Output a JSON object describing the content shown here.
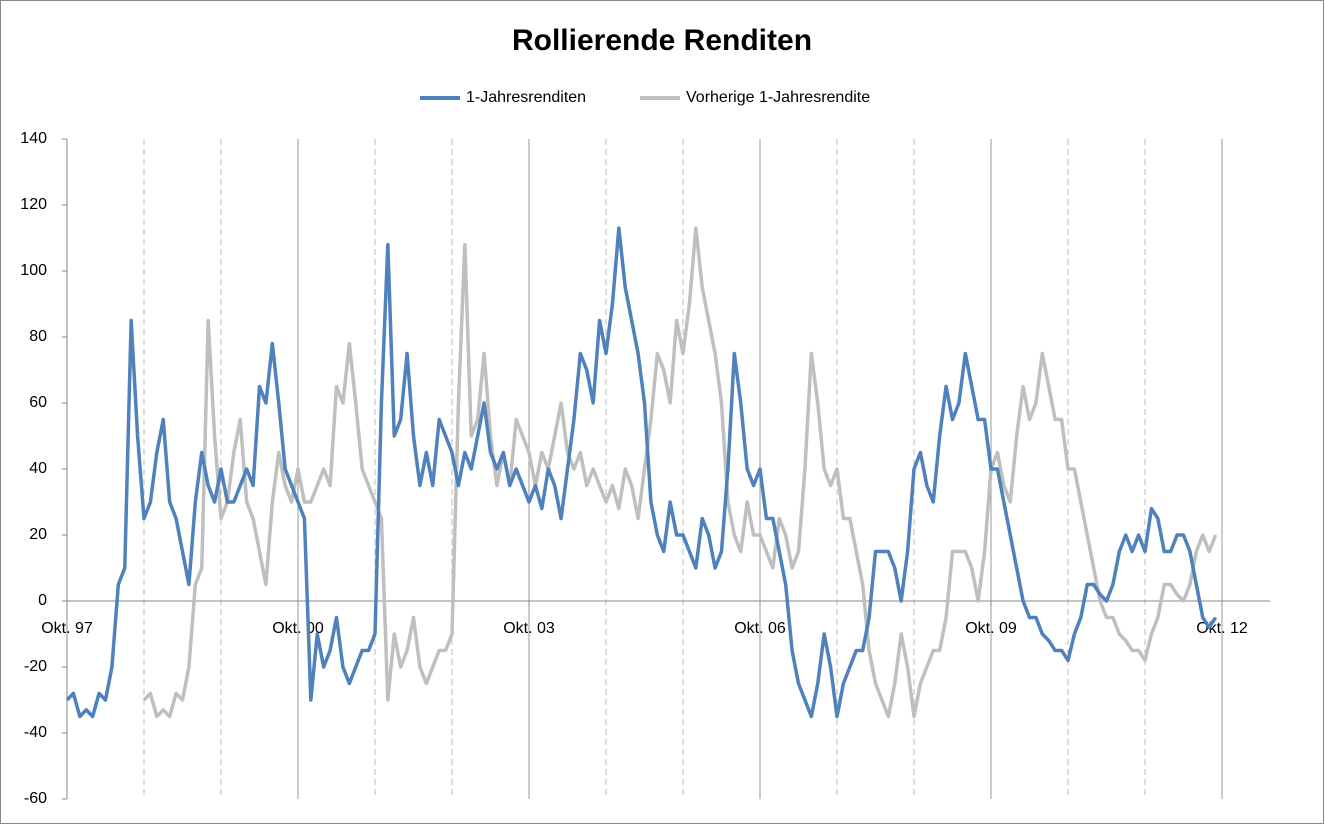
{
  "chart_data": {
    "type": "line",
    "title": "Rollierende Renditen",
    "categories": [
      "Okt. 97",
      null,
      null,
      null,
      null,
      null,
      null,
      null,
      null,
      null,
      null,
      null,
      null,
      null,
      null,
      null,
      null,
      null,
      null,
      null,
      null,
      null,
      null,
      null,
      null,
      null,
      null,
      null,
      null,
      null,
      null,
      null,
      null,
      null,
      null,
      null,
      "Okt. 00",
      null,
      null,
      null,
      null,
      null,
      null,
      null,
      null,
      null,
      null,
      null,
      null,
      null,
      null,
      null,
      null,
      null,
      null,
      null,
      null,
      null,
      null,
      null,
      null,
      null,
      null,
      null,
      null,
      null,
      null,
      null,
      null,
      null,
      null,
      null,
      "Okt. 03",
      null,
      null,
      null,
      null,
      null,
      null,
      null,
      null,
      null,
      null,
      null,
      null,
      null,
      null,
      null,
      null,
      null,
      null,
      null,
      null,
      null,
      null,
      null,
      null,
      null,
      null,
      null,
      null,
      null,
      null,
      null,
      null,
      null,
      null,
      null,
      "Okt. 06",
      null,
      null,
      null,
      null,
      null,
      null,
      null,
      null,
      null,
      null,
      null,
      null,
      null,
      null,
      null,
      null,
      null,
      null,
      null,
      null,
      null,
      null,
      null,
      null,
      null,
      null,
      null,
      null,
      null,
      null,
      null,
      null,
      null,
      null,
      null,
      "Okt. 09",
      null,
      null,
      null,
      null,
      null,
      null,
      null,
      null,
      null,
      null,
      null,
      null,
      null,
      null,
      null,
      null,
      null,
      null,
      null,
      null,
      null,
      null,
      null,
      null,
      null,
      null,
      null,
      null,
      null,
      null,
      null,
      null,
      null,
      null,
      null,
      "Okt. 12"
    ],
    "series": [
      {
        "name": "1-Jahresrenditen",
        "color": "#4f81bd",
        "values": [
          -30,
          -28,
          -35,
          -33,
          -35,
          -28,
          -30,
          -20,
          5,
          10,
          85,
          50,
          25,
          30,
          45,
          55,
          30,
          25,
          15,
          5,
          30,
          45,
          35,
          30,
          40,
          30,
          30,
          35,
          40,
          35,
          65,
          60,
          78,
          60,
          40,
          35,
          30,
          25,
          -30,
          -10,
          -20,
          -15,
          -5,
          -20,
          -25,
          -20,
          -15,
          -15,
          -10,
          60,
          108,
          50,
          55,
          75,
          50,
          35,
          45,
          35,
          55,
          50,
          45,
          35,
          45,
          40,
          50,
          60,
          45,
          40,
          45,
          35,
          40,
          35,
          30,
          35,
          28,
          40,
          35,
          25,
          40,
          55,
          75,
          70,
          60,
          85,
          75,
          90,
          113,
          95,
          85,
          75,
          60,
          30,
          20,
          15,
          30,
          20,
          20,
          15,
          10,
          25,
          20,
          10,
          15,
          40,
          75,
          60,
          40,
          35,
          40,
          25,
          25,
          15,
          5,
          -15,
          -25,
          -30,
          -35,
          -25,
          -10,
          -20,
          -35,
          -25,
          -20,
          -15,
          -15,
          -5,
          15,
          15,
          15,
          10,
          0,
          15,
          40,
          45,
          35,
          30,
          50,
          65,
          55,
          60,
          75,
          65,
          55,
          55,
          40,
          40,
          30,
          20,
          10,
          0,
          -5,
          -5,
          -10,
          -12,
          -15,
          -15,
          -18,
          -10,
          -5,
          5,
          5,
          2,
          0,
          5,
          15,
          20,
          15,
          20,
          15,
          28,
          25,
          15,
          15,
          20,
          20,
          15,
          5,
          -5,
          -8,
          -5,
          null
        ]
      },
      {
        "name": "Vorherige 1-Jahresrendite",
        "color": "#bfbfbf",
        "values": [
          null,
          null,
          null,
          null,
          null,
          null,
          null,
          null,
          null,
          null,
          null,
          null,
          -30,
          -28,
          -35,
          -33,
          -35,
          -28,
          -30,
          -20,
          5,
          10,
          85,
          50,
          25,
          30,
          45,
          55,
          30,
          25,
          15,
          5,
          30,
          45,
          35,
          30,
          40,
          30,
          30,
          35,
          40,
          35,
          65,
          60,
          78,
          60,
          40,
          35,
          30,
          25,
          -30,
          -10,
          -20,
          -15,
          -5,
          -20,
          -25,
          -20,
          -15,
          -15,
          -10,
          60,
          108,
          50,
          55,
          75,
          50,
          35,
          45,
          35,
          55,
          50,
          45,
          35,
          45,
          40,
          50,
          60,
          45,
          40,
          45,
          35,
          40,
          35,
          30,
          35,
          28,
          40,
          35,
          25,
          40,
          55,
          75,
          70,
          60,
          85,
          75,
          90,
          113,
          95,
          85,
          75,
          60,
          30,
          20,
          15,
          30,
          20,
          20,
          15,
          10,
          25,
          20,
          10,
          15,
          40,
          75,
          60,
          40,
          35,
          40,
          25,
          25,
          15,
          5,
          -15,
          -25,
          -30,
          -35,
          -25,
          -10,
          -20,
          -35,
          -25,
          -20,
          -15,
          -15,
          -5,
          15,
          15,
          15,
          10,
          0,
          15,
          40,
          45,
          35,
          30,
          50,
          65,
          55,
          60,
          75,
          65,
          55,
          55,
          40,
          40,
          30,
          20,
          10,
          0,
          -5,
          -5,
          -10,
          -12,
          -15,
          -15,
          -18,
          -10,
          -5,
          5,
          5,
          2,
          0,
          5,
          15,
          20,
          15,
          20,
          null
        ]
      }
    ],
    "ylim": [
      -60,
      140
    ],
    "yticks": [
      -60,
      -40,
      -20,
      0,
      20,
      40,
      60,
      80,
      100,
      120,
      140
    ],
    "legend": "top"
  }
}
